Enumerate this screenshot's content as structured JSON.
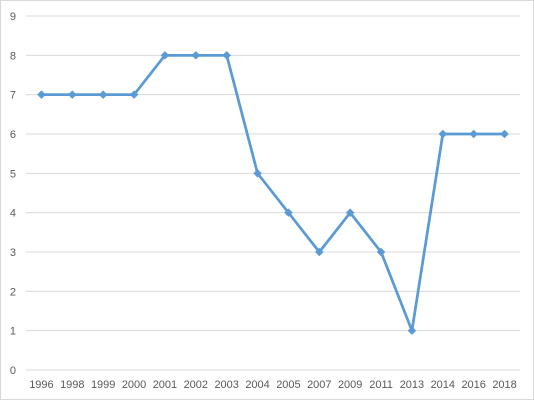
{
  "chart_data": {
    "type": "line",
    "categories": [
      "1996",
      "1998",
      "1999",
      "2000",
      "2001",
      "2002",
      "2003",
      "2004",
      "2005",
      "2007",
      "2009",
      "2011",
      "2013",
      "2014",
      "2016",
      "2018"
    ],
    "series": [
      {
        "values": [
          7,
          7,
          7,
          7,
          8,
          8,
          8,
          5,
          4,
          3,
          4,
          3,
          1,
          6,
          6,
          6
        ],
        "color": "#5b9bd5",
        "marker": "diamond"
      }
    ],
    "ylim": [
      0,
      9
    ],
    "yticks": [
      "0",
      "1",
      "2",
      "3",
      "4",
      "5",
      "6",
      "7",
      "8",
      "9"
    ],
    "grid": true,
    "legend": "none",
    "colors": {
      "line": "#5b9bd5",
      "grid": "#d9d9d9",
      "axis": "#d9d9d9",
      "text": "#595959"
    }
  }
}
